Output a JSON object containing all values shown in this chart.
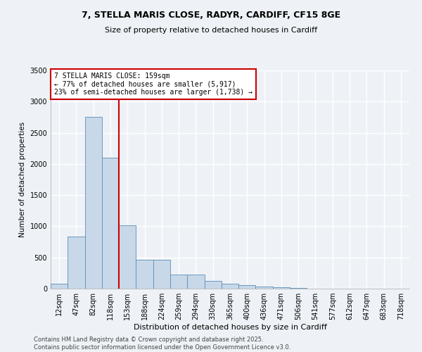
{
  "title_line1": "7, STELLA MARIS CLOSE, RADYR, CARDIFF, CF15 8GE",
  "title_line2": "Size of property relative to detached houses in Cardiff",
  "xlabel": "Distribution of detached houses by size in Cardiff",
  "ylabel": "Number of detached properties",
  "categories": [
    "12sqm",
    "47sqm",
    "82sqm",
    "118sqm",
    "153sqm",
    "188sqm",
    "224sqm",
    "259sqm",
    "294sqm",
    "330sqm",
    "365sqm",
    "400sqm",
    "436sqm",
    "471sqm",
    "506sqm",
    "541sqm",
    "577sqm",
    "612sqm",
    "647sqm",
    "683sqm",
    "718sqm"
  ],
  "values": [
    75,
    830,
    2750,
    2100,
    1020,
    460,
    460,
    230,
    230,
    120,
    75,
    55,
    30,
    18,
    10,
    5,
    3,
    2,
    1,
    1,
    0
  ],
  "bar_color": "#c8d8e8",
  "bar_edgecolor": "#5b8db8",
  "vline_x_index": 3,
  "vline_color": "#cc0000",
  "annotation_text": "7 STELLA MARIS CLOSE: 159sqm\n← 77% of detached houses are smaller (5,917)\n23% of semi-detached houses are larger (1,738) →",
  "annotation_box_color": "#ffffff",
  "annotation_box_edgecolor": "#cc0000",
  "ylim": [
    0,
    3500
  ],
  "yticks": [
    0,
    500,
    1000,
    1500,
    2000,
    2500,
    3000,
    3500
  ],
  "footer_line1": "Contains HM Land Registry data © Crown copyright and database right 2025.",
  "footer_line2": "Contains public sector information licensed under the Open Government Licence v3.0.",
  "background_color": "#eef2f6",
  "grid_color": "#ffffff",
  "title_fontsize": 9,
  "subtitle_fontsize": 8,
  "xlabel_fontsize": 8,
  "ylabel_fontsize": 7.5,
  "tick_fontsize": 7,
  "annotation_fontsize": 7,
  "footer_fontsize": 6
}
